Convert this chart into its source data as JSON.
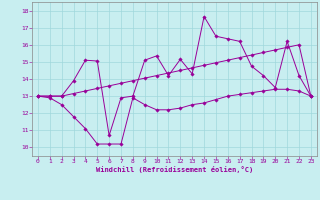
{
  "xlabel": "Windchill (Refroidissement éolien,°C)",
  "xlim": [
    -0.5,
    23.5
  ],
  "ylim": [
    9.5,
    18.5
  ],
  "xticks": [
    0,
    1,
    2,
    3,
    4,
    5,
    6,
    7,
    8,
    9,
    10,
    11,
    12,
    13,
    14,
    15,
    16,
    17,
    18,
    19,
    20,
    21,
    22,
    23
  ],
  "yticks": [
    10,
    11,
    12,
    13,
    14,
    15,
    16,
    17,
    18
  ],
  "background_color": "#c8eef0",
  "line_color": "#990099",
  "grid_color": "#a0d8dc",
  "line1_x": [
    0,
    1,
    2,
    3,
    4,
    5,
    6,
    7,
    8,
    9,
    10,
    11,
    12,
    13,
    14,
    15,
    16,
    17,
    18,
    19,
    20,
    21,
    22,
    23
  ],
  "line1_y": [
    13.0,
    12.9,
    12.5,
    11.8,
    11.1,
    10.2,
    10.2,
    10.2,
    12.9,
    12.5,
    12.2,
    12.2,
    12.3,
    12.5,
    12.6,
    12.8,
    13.0,
    13.1,
    13.2,
    13.3,
    13.4,
    13.4,
    13.3,
    13.0
  ],
  "line2_x": [
    0,
    1,
    2,
    3,
    4,
    5,
    6,
    7,
    8,
    9,
    10,
    11,
    12,
    13,
    14,
    15,
    16,
    17,
    18,
    19,
    20,
    21,
    22,
    23
  ],
  "line2_y": [
    13.0,
    13.0,
    13.0,
    13.15,
    13.3,
    13.45,
    13.6,
    13.75,
    13.9,
    14.05,
    14.2,
    14.35,
    14.5,
    14.65,
    14.8,
    14.95,
    15.1,
    15.25,
    15.4,
    15.55,
    15.7,
    15.85,
    16.0,
    13.0
  ],
  "line3_x": [
    0,
    1,
    2,
    3,
    4,
    5,
    6,
    7,
    8,
    9,
    10,
    11,
    12,
    13,
    14,
    15,
    16,
    17,
    18,
    19,
    20,
    21,
    22,
    23
  ],
  "line3_y": [
    13.0,
    13.0,
    13.0,
    13.9,
    15.1,
    15.05,
    10.7,
    12.9,
    13.0,
    15.1,
    15.35,
    14.2,
    15.15,
    14.3,
    17.65,
    16.5,
    16.35,
    16.2,
    14.75,
    14.2,
    13.5,
    16.2,
    14.2,
    13.0
  ]
}
